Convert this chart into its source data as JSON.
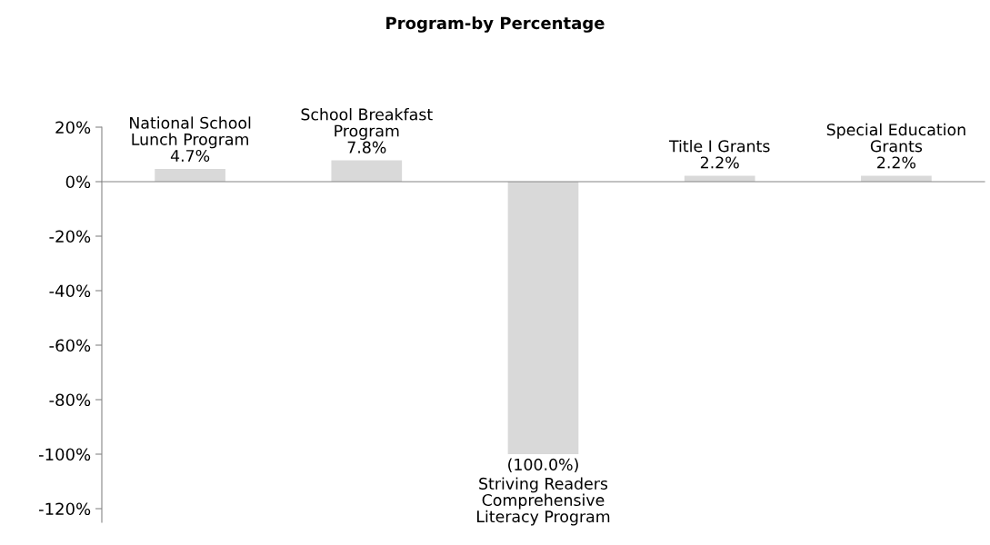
{
  "chart_data": {
    "type": "bar",
    "title": "Program-by Percentage",
    "categories": [
      "National School\nLunch Program",
      "School Breakfast\nProgram",
      "Striving Readers\nComprehensive\nLiteracy Program",
      "Title I Grants",
      "Special Education\nGrants"
    ],
    "values": [
      4.7,
      7.8,
      -100.0,
      2.2,
      2.2
    ],
    "value_labels": [
      "4.7%",
      "7.8%",
      "(100.0%)",
      "2.2%",
      "2.2%"
    ],
    "color": "#d9d9d9",
    "ylim": [
      -125,
      20
    ],
    "yticks": [
      {
        "value": 20,
        "label": "20%"
      },
      {
        "value": 0,
        "label": "0%"
      },
      {
        "value": -20,
        "label": "-20%"
      },
      {
        "value": -40,
        "label": "-40%"
      },
      {
        "value": -60,
        "label": "-60%"
      },
      {
        "value": -80,
        "label": "-80%"
      },
      {
        "value": -100,
        "label": "-100%"
      },
      {
        "value": -120,
        "label": "-120%"
      }
    ],
    "tick_labels": "y",
    "grid": false,
    "legend": false
  }
}
